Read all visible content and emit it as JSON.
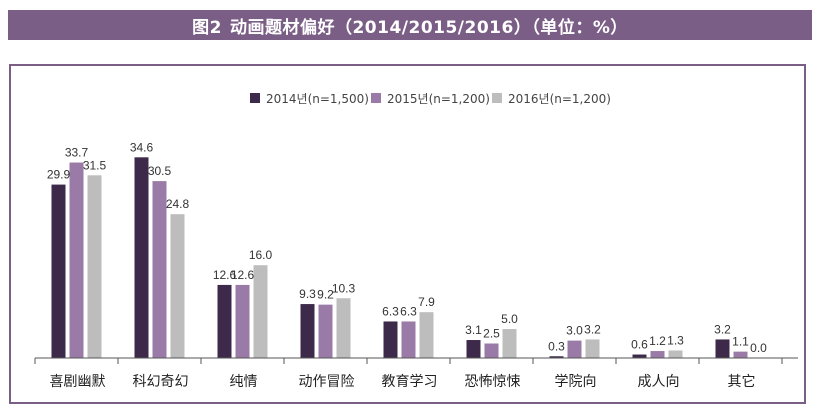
{
  "title": {
    "number": "图2",
    "text": "动画题材偏好（2014/2015/2016）（单位：%）"
  },
  "colors": {
    "title_bg": "#7a5e86",
    "frame": "#7a5e86",
    "series": [
      "#3d2a4a",
      "#9a7ba8",
      "#bdbdbd"
    ]
  },
  "chart_data": {
    "type": "bar",
    "title": "动画题材偏好（2014/2015/2016）（单位：%）",
    "categories": [
      "喜剧幽默",
      "科幻奇幻",
      "纯情",
      "动作冒险",
      "教育学习",
      "恐怖惊悚",
      "学院向",
      "成人向",
      "其它"
    ],
    "series": [
      {
        "name": "2014년(n=1,500)",
        "values": [
          29.9,
          34.6,
          12.6,
          9.3,
          6.3,
          3.1,
          0.3,
          0.6,
          3.2
        ]
      },
      {
        "name": "2015년(n=1,200)",
        "values": [
          33.7,
          30.5,
          12.6,
          9.2,
          6.3,
          2.5,
          3.0,
          1.2,
          1.1
        ]
      },
      {
        "name": "2016년(n=1,200)",
        "values": [
          31.5,
          24.8,
          16.0,
          10.3,
          7.9,
          5.0,
          3.2,
          1.3,
          0.0
        ]
      }
    ],
    "ylim": [
      0,
      40
    ],
    "legend_position": "top-center",
    "grid": false
  }
}
